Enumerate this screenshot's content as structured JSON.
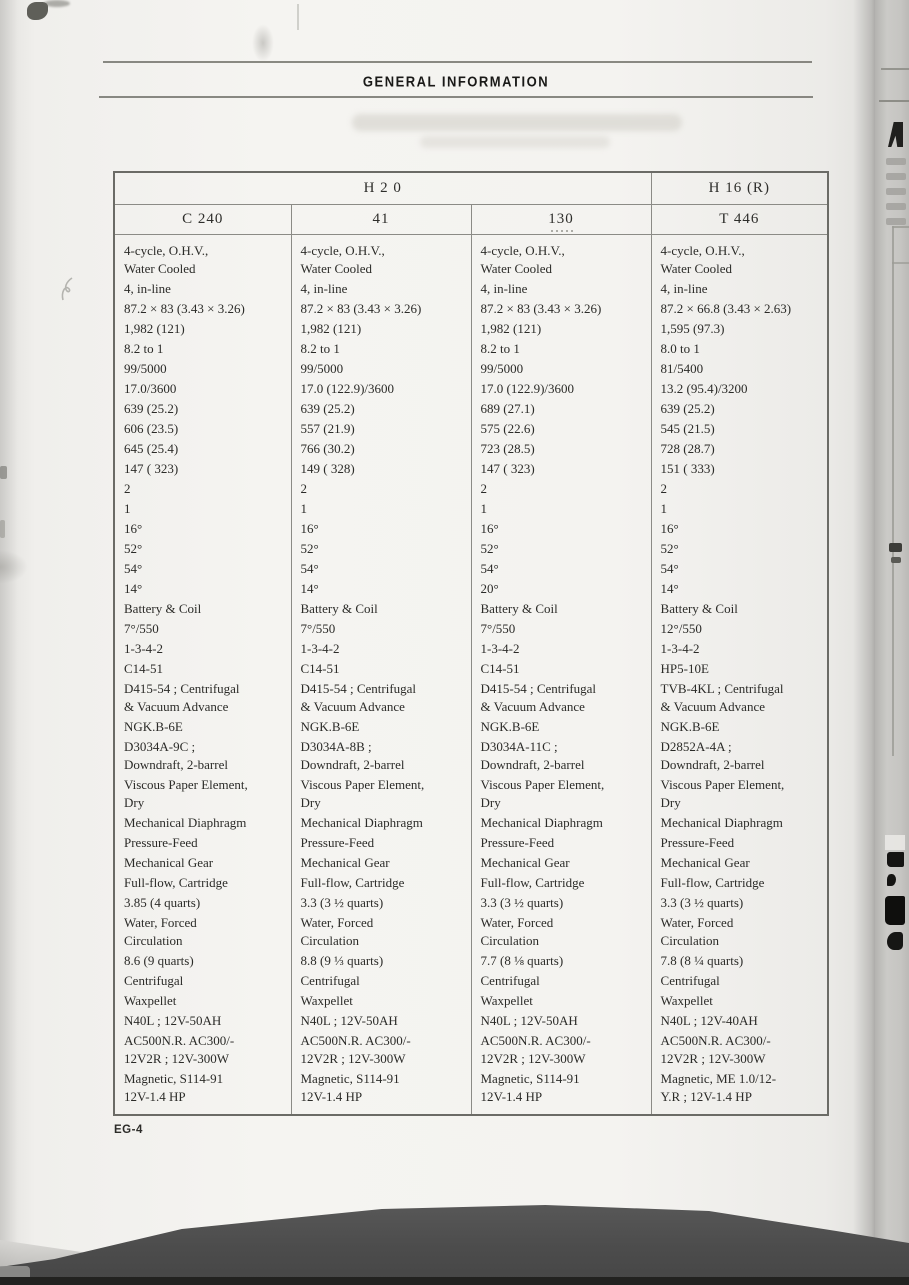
{
  "page": {
    "section_title": "GENERAL INFORMATION",
    "page_number_label": "EG-4"
  },
  "table": {
    "group_headers": [
      {
        "label": "H 2 0"
      },
      {
        "label": "H 16 (R)"
      }
    ],
    "column_headers": [
      "C 240",
      "41",
      "130",
      "T 446"
    ],
    "rows": [
      [
        "4-cycle, O.H.V.,\nWater Cooled",
        "4-cycle, O.H.V.,\nWater Cooled",
        "4-cycle, O.H.V.,\nWater Cooled",
        "4-cycle, O.H.V.,\nWater Cooled"
      ],
      [
        "4, in-line",
        "4, in-line",
        "4, in-line",
        "4, in-line"
      ],
      [
        "87.2 × 83 (3.43 × 3.26)",
        "87.2 × 83 (3.43 × 3.26)",
        "87.2 × 83 (3.43 × 3.26)",
        "87.2 × 66.8 (3.43 × 2.63)"
      ],
      [
        "1,982 (121)",
        "1,982 (121)",
        "1,982 (121)",
        "1,595 (97.3)"
      ],
      [
        "8.2 to 1",
        "8.2 to 1",
        "8.2 to 1",
        "8.0 to 1"
      ],
      [
        "99/5000",
        "99/5000",
        "99/5000",
        "81/5400"
      ],
      [
        "17.0/3600",
        "17.0 (122.9)/3600",
        "17.0 (122.9)/3600",
        "13.2 (95.4)/3200"
      ],
      [
        "639 (25.2)",
        "639 (25.2)",
        "689 (27.1)",
        "639 (25.2)"
      ],
      [
        "606 (23.5)",
        "557 (21.9)",
        "575 (22.6)",
        "545 (21.5)"
      ],
      [
        "645 (25.4)",
        "766 (30.2)",
        "723 (28.5)",
        "728 (28.7)"
      ],
      [
        "147 ( 323)",
        "149 ( 328)",
        "147 ( 323)",
        "151 ( 333)"
      ],
      [
        "2",
        "2",
        "2",
        "2"
      ],
      [
        "1",
        "1",
        "1",
        "1"
      ],
      [
        "16°",
        "16°",
        "16°",
        "16°"
      ],
      [
        "52°",
        "52°",
        "52°",
        "52°"
      ],
      [
        "54°",
        "54°",
        "54°",
        "54°"
      ],
      [
        "14°",
        "14°",
        "20°",
        "14°"
      ],
      [
        "Battery & Coil",
        "Battery & Coil",
        "Battery & Coil",
        "Battery & Coil"
      ],
      [
        "7°/550",
        "7°/550",
        "7°/550",
        "12°/550"
      ],
      [
        "1-3-4-2",
        "1-3-4-2",
        "1-3-4-2",
        "1-3-4-2"
      ],
      [
        "C14-51",
        "C14-51",
        "C14-51",
        "HP5-10E"
      ],
      [
        "D415-54 ; Centrifugal\n& Vacuum Advance",
        "D415-54 ; Centrifugal\n& Vacuum Advance",
        "D415-54 ; Centrifugal\n& Vacuum Advance",
        "TVB-4KL ; Centrifugal\n& Vacuum Advance"
      ],
      [
        "NGK.B-6E",
        "NGK.B-6E",
        "NGK.B-6E",
        "NGK.B-6E"
      ],
      [
        "D3034A-9C ;\nDowndraft, 2-barrel",
        "D3034A-8B ;\nDowndraft, 2-barrel",
        "D3034A-11C ;\nDowndraft, 2-barrel",
        "D2852A-4A ;\nDowndraft, 2-barrel"
      ],
      [
        "Viscous Paper Element,\nDry",
        "Viscous Paper Element,\nDry",
        "Viscous Paper Element,\nDry",
        "Viscous Paper Element,\nDry"
      ],
      [
        "Mechanical Diaphragm",
        "Mechanical Diaphragm",
        "Mechanical Diaphragm",
        "Mechanical Diaphragm"
      ],
      [
        "Pressure-Feed",
        "Pressure-Feed",
        "Pressure-Feed",
        "Pressure-Feed"
      ],
      [
        "Mechanical Gear",
        "Mechanical Gear",
        "Mechanical Gear",
        "Mechanical Gear"
      ],
      [
        "Full-flow, Cartridge",
        "Full-flow, Cartridge",
        "Full-flow, Cartridge",
        "Full-flow, Cartridge"
      ],
      [
        "3.85 (4 quarts)",
        "3.3 (3 ½ quarts)",
        "3.3 (3 ½ quarts)",
        "3.3 (3 ½ quarts)"
      ],
      [
        "Water, Forced\nCirculation",
        "Water, Forced\nCirculation",
        "Water, Forced\nCirculation",
        "Water, Forced\nCirculation"
      ],
      [
        "8.6 (9 quarts)",
        "8.8 (9 ⅓ quarts)",
        "7.7 (8 ⅛ quarts)",
        "7.8 (8 ¼ quarts)"
      ],
      [
        "Centrifugal",
        "Centrifugal",
        "Centrifugal",
        "Centrifugal"
      ],
      [
        "Waxpellet",
        "Waxpellet",
        "Waxpellet",
        "Waxpellet"
      ],
      [
        "N40L ; 12V-50AH",
        "N40L ; 12V-50AH",
        "N40L ; 12V-50AH",
        "N40L ; 12V-40AH"
      ],
      [
        "AC500N.R. AC300/-\n12V2R ; 12V-300W",
        "AC500N.R. AC300/-\n12V2R ; 12V-300W",
        "AC500N.R. AC300/-\n12V2R ; 12V-300W",
        "AC500N.R. AC300/-\n12V2R ; 12V-300W"
      ],
      [
        "Magnetic, S114-91\n12V-1.4 HP",
        "Magnetic, S114-91\n12V-1.4 HP",
        "Magnetic, S114-91\n12V-1.4 HP",
        "Magnetic, ME 1.0/12-\nY.R ; 12V-1.4 HP"
      ]
    ]
  }
}
